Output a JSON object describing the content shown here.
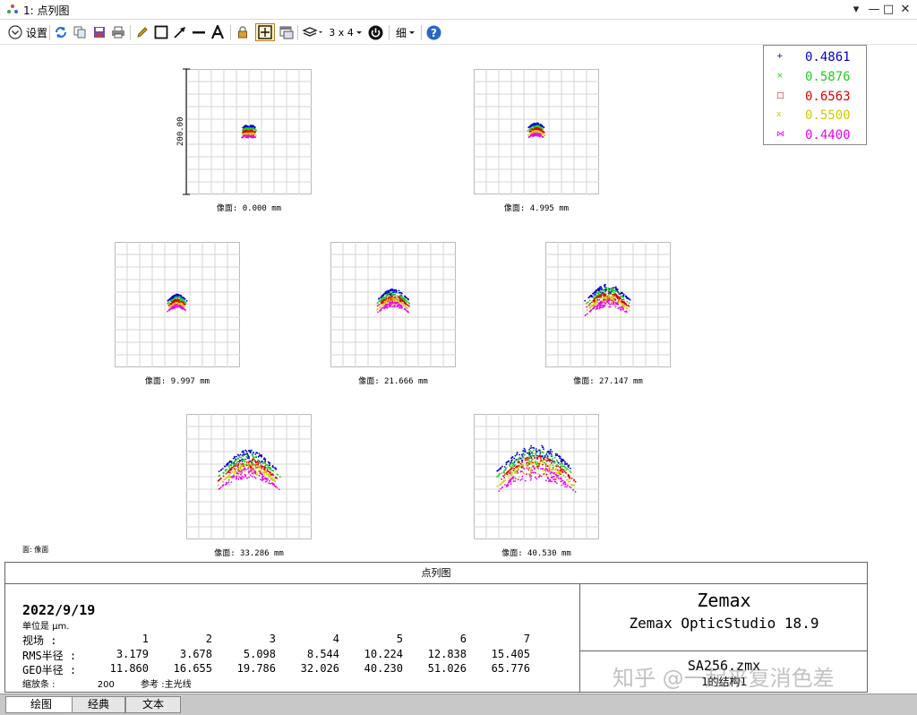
{
  "window": {
    "title": "1: 点列图",
    "controls": [
      "▾",
      "—",
      "□",
      "✕"
    ]
  },
  "toolbar": {
    "settings_label": "设置",
    "layout_label": "3 x 4",
    "style_label": "细",
    "icons": [
      "refresh-icon",
      "copy-icon",
      "save-icon",
      "print-icon",
      "pencil-icon",
      "rectangle-icon",
      "arrow-icon",
      "line-icon",
      "text-icon",
      "lock-icon",
      "grid-toggle-icon",
      "window-icon",
      "layers-icon",
      "power-icon",
      "help-icon"
    ]
  },
  "plot": {
    "y_axis_label": "200.00",
    "surface_note": "面: 像面",
    "fields": [
      {
        "label": "像面: 0.000 mm",
        "spread": 0.06,
        "arch": 0.0
      },
      {
        "label": "像面: 4.995 mm",
        "spread": 0.07,
        "arch": 0.05
      },
      {
        "label": "像面: 9.997 mm",
        "spread": 0.08,
        "arch": 0.08
      },
      {
        "label": "像面: 21.666 mm",
        "spread": 0.14,
        "arch": 0.15
      },
      {
        "label": "像面: 27.147 mm",
        "spread": 0.19,
        "arch": 0.2
      },
      {
        "label": "像面: 33.286 mm",
        "spread": 0.26,
        "arch": 0.28
      },
      {
        "label": "像面: 40.530 mm",
        "spread": 0.34,
        "arch": 0.32
      }
    ]
  },
  "legend": {
    "items": [
      {
        "mark": "+",
        "value": "0.4861",
        "color": "#0000cc"
      },
      {
        "mark": "×",
        "value": "0.5876",
        "color": "#22cc22"
      },
      {
        "mark": "□",
        "value": "0.6563",
        "color": "#e00000"
      },
      {
        "mark": "x",
        "value": "0.5500",
        "color": "#cccc00"
      },
      {
        "mark": "⋈",
        "value": "0.4400",
        "color": "#ee00ee"
      }
    ]
  },
  "info": {
    "header": "点列图",
    "date": "2022/9/19",
    "units": "单位是 μm.",
    "field_row_label": "视场       :",
    "field_numbers": [
      "1",
      "2",
      "3",
      "4",
      "5",
      "6",
      "7"
    ],
    "rms_label": "RMS半径 :",
    "rms_values": [
      "3.179",
      "3.678",
      "5.098",
      "8.544",
      "10.224",
      "12.838",
      "15.405"
    ],
    "geo_label": "GEO半径 :",
    "geo_values": [
      "11.860",
      "16.655",
      "19.786",
      "32.026",
      "40.230",
      "51.026",
      "65.776"
    ],
    "scale_label": "缩放条  :",
    "scale_value": "200",
    "reference_label": "参考  :主光线",
    "company": "Zemax",
    "product": "Zemax OpticStudio 18.9",
    "file": "SA256.zmx",
    "config": "1的结构1"
  },
  "watermark": "知乎 @一起来复消色差",
  "tabs": [
    {
      "label": "绘图",
      "active": true
    },
    {
      "label": "经典",
      "active": false
    },
    {
      "label": "文本",
      "active": false
    }
  ]
}
